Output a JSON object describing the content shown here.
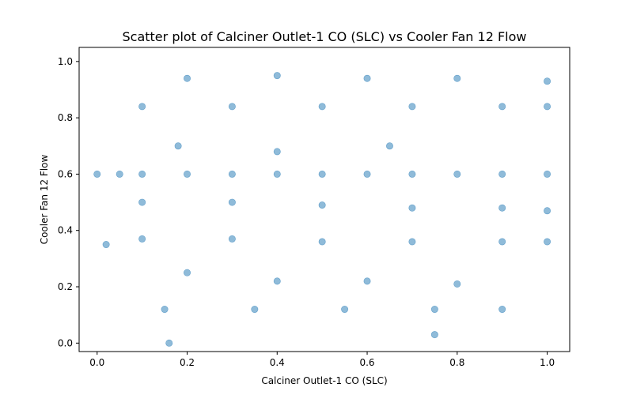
{
  "chart_data": {
    "type": "scatter",
    "title": "Scatter plot of Calciner Outlet-1 CO (SLC) vs Cooler Fan 12 Flow",
    "xlabel": "Calciner Outlet-1 CO (SLC)",
    "ylabel": "Cooler Fan 12 Flow",
    "xlim": [
      -0.04,
      1.05
    ],
    "ylim": [
      -0.03,
      1.05
    ],
    "xticks": [
      0.0,
      0.2,
      0.4,
      0.6,
      0.8,
      1.0
    ],
    "yticks": [
      0.0,
      0.2,
      0.4,
      0.6,
      0.8,
      1.0
    ],
    "xtick_labels": [
      "0.0",
      "0.2",
      "0.4",
      "0.6",
      "0.8",
      "1.0"
    ],
    "ytick_labels": [
      "0.0",
      "0.2",
      "0.4",
      "0.6",
      "0.8",
      "1.0"
    ],
    "grid": false,
    "marker_color": "#1f77b4",
    "series": [
      {
        "values": [
          {
            "x": 0.0,
            "y": 0.6
          },
          {
            "x": 0.02,
            "y": 0.35
          },
          {
            "x": 0.05,
            "y": 0.6
          },
          {
            "x": 0.1,
            "y": 0.6
          },
          {
            "x": 0.2,
            "y": 0.6
          },
          {
            "x": 0.3,
            "y": 0.6
          },
          {
            "x": 0.4,
            "y": 0.6
          },
          {
            "x": 0.5,
            "y": 0.6
          },
          {
            "x": 0.6,
            "y": 0.6
          },
          {
            "x": 0.7,
            "y": 0.6
          },
          {
            "x": 0.8,
            "y": 0.6
          },
          {
            "x": 0.9,
            "y": 0.6
          },
          {
            "x": 1.0,
            "y": 0.6
          },
          {
            "x": 0.1,
            "y": 0.5
          },
          {
            "x": 0.3,
            "y": 0.5
          },
          {
            "x": 0.5,
            "y": 0.49
          },
          {
            "x": 0.7,
            "y": 0.48
          },
          {
            "x": 0.9,
            "y": 0.48
          },
          {
            "x": 1.0,
            "y": 0.47
          },
          {
            "x": 0.1,
            "y": 0.37
          },
          {
            "x": 0.3,
            "y": 0.37
          },
          {
            "x": 0.5,
            "y": 0.36
          },
          {
            "x": 0.7,
            "y": 0.36
          },
          {
            "x": 0.9,
            "y": 0.36
          },
          {
            "x": 1.0,
            "y": 0.36
          },
          {
            "x": 0.1,
            "y": 0.84
          },
          {
            "x": 0.3,
            "y": 0.84
          },
          {
            "x": 0.5,
            "y": 0.84
          },
          {
            "x": 0.7,
            "y": 0.84
          },
          {
            "x": 0.9,
            "y": 0.84
          },
          {
            "x": 1.0,
            "y": 0.84
          },
          {
            "x": 0.2,
            "y": 0.94
          },
          {
            "x": 0.4,
            "y": 0.95
          },
          {
            "x": 0.6,
            "y": 0.94
          },
          {
            "x": 0.8,
            "y": 0.94
          },
          {
            "x": 1.0,
            "y": 0.93
          },
          {
            "x": 0.15,
            "y": 0.12
          },
          {
            "x": 0.35,
            "y": 0.12
          },
          {
            "x": 0.55,
            "y": 0.12
          },
          {
            "x": 0.75,
            "y": 0.12
          },
          {
            "x": 0.9,
            "y": 0.12
          },
          {
            "x": 0.2,
            "y": 0.25
          },
          {
            "x": 0.4,
            "y": 0.22
          },
          {
            "x": 0.6,
            "y": 0.22
          },
          {
            "x": 0.8,
            "y": 0.21
          },
          {
            "x": 0.18,
            "y": 0.7
          },
          {
            "x": 0.4,
            "y": 0.68
          },
          {
            "x": 0.65,
            "y": 0.7
          },
          {
            "x": 0.75,
            "y": 0.03
          },
          {
            "x": 0.16,
            "y": 0.0
          }
        ]
      }
    ]
  }
}
